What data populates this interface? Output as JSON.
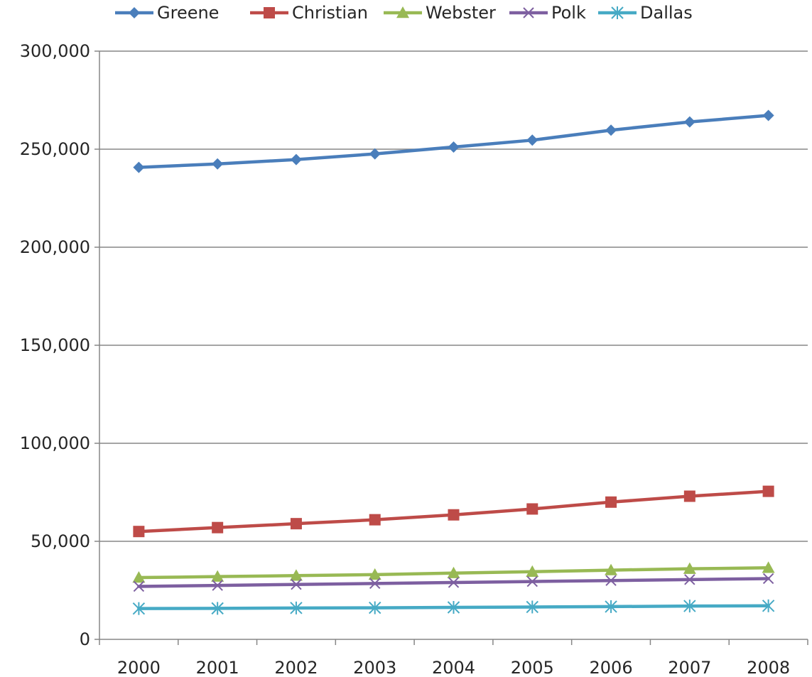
{
  "chart_data": {
    "type": "line",
    "categories": [
      "2000",
      "2001",
      "2002",
      "2003",
      "2004",
      "2005",
      "2006",
      "2007",
      "2008"
    ],
    "ylim": [
      0,
      300000
    ],
    "y_ticks": [
      0,
      50000,
      100000,
      150000,
      200000,
      250000,
      300000
    ],
    "y_tick_labels": [
      "0",
      "50,000",
      "100,000",
      "150,000",
      "200,000",
      "250,000",
      "300,000"
    ],
    "grid": true,
    "legend_position": "top",
    "series": [
      {
        "name": "Greene",
        "color": "#4a7ebb",
        "marker": "diamond",
        "values": [
          240700,
          242500,
          244700,
          247600,
          251100,
          254600,
          259700,
          263900,
          267200
        ]
      },
      {
        "name": "Christian",
        "color": "#be4b48",
        "marker": "square",
        "values": [
          55000,
          57000,
          59000,
          61000,
          63500,
          66500,
          70000,
          73000,
          75500
        ]
      },
      {
        "name": "Webster",
        "color": "#98b954",
        "marker": "triangle",
        "values": [
          31500,
          32000,
          32500,
          33000,
          33800,
          34500,
          35300,
          36000,
          36500
        ]
      },
      {
        "name": "Polk",
        "color": "#7d5fa0",
        "marker": "x",
        "values": [
          27000,
          27500,
          28000,
          28500,
          29000,
          29500,
          30000,
          30500,
          31000
        ]
      },
      {
        "name": "Dallas",
        "color": "#46aac5",
        "marker": "asterisk",
        "values": [
          15700,
          15800,
          16000,
          16100,
          16300,
          16500,
          16700,
          17000,
          17100
        ]
      }
    ]
  }
}
